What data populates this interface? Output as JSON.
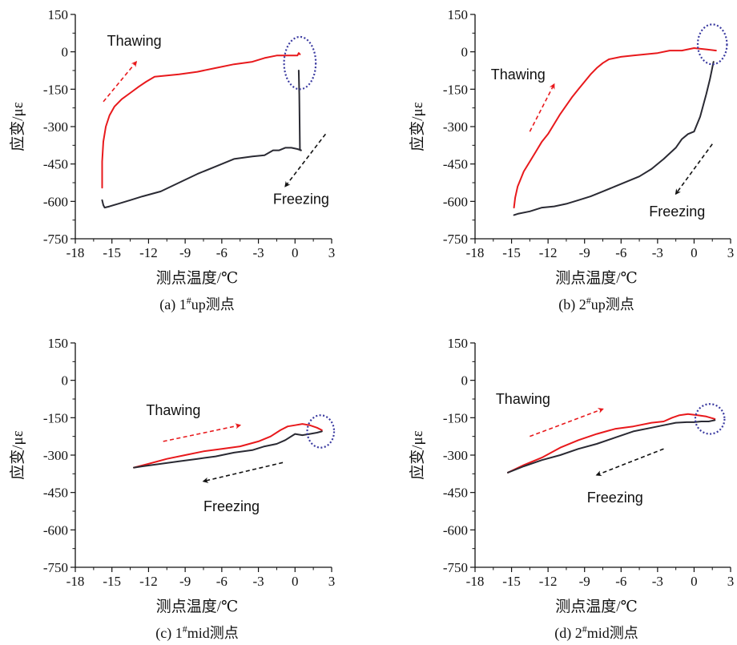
{
  "colors": {
    "thawing": "#e8191c",
    "freezing": "#2a2a33",
    "marker": "#3a3aa0",
    "axis": "#111111"
  },
  "chart_data": [
    {
      "type": "line",
      "caption": "(a) 1#up测点",
      "caption_prefix": "(a) 1",
      "caption_sup": "#",
      "caption_suffix": "up测点",
      "xlabel": "测点温度/℃",
      "ylabel": "应变/με",
      "xlim": [
        -18,
        3
      ],
      "ylim": [
        -750,
        150
      ],
      "xticks": [
        "-18",
        "-15",
        "-12",
        "-9",
        "-6",
        "-3",
        "0",
        "3"
      ],
      "yticks": [
        "150",
        "0",
        "-150",
        "-300",
        "-450",
        "-600",
        "-750"
      ],
      "annotations": {
        "thawing": "Thawing",
        "freezing": "Freezing"
      },
      "series": [
        {
          "name": "Thawing",
          "x": [
            -15.8,
            -15.8,
            -15.7,
            -15.5,
            -15.2,
            -14.8,
            -14.2,
            -13.5,
            -12.8,
            -12.2,
            -11.5,
            -10.5,
            -9.5,
            -8,
            -6.5,
            -5,
            -3.5,
            -2.5,
            -1.5,
            -0.5,
            0.2,
            0.3,
            0.4
          ],
          "y": [
            -545,
            -440,
            -360,
            -300,
            -255,
            -220,
            -190,
            -165,
            -140,
            -120,
            -100,
            -95,
            -90,
            -80,
            -65,
            -50,
            -40,
            -25,
            -15,
            -15,
            -15,
            -5,
            -10
          ]
        },
        {
          "name": "Freezing",
          "x": [
            0.3,
            0.35,
            0.4,
            0.45,
            0.5,
            0.2,
            -0.3,
            -0.8,
            -1.3,
            -1.8,
            -2.5,
            -3.5,
            -5,
            -6.5,
            -8,
            -9.5,
            -11,
            -12.5,
            -13.5,
            -14.5,
            -15.2,
            -15.6,
            -15.7,
            -15.8
          ],
          "y": [
            -75,
            -170,
            -390,
            -395,
            -395,
            -390,
            -385,
            -385,
            -395,
            -395,
            -415,
            -420,
            -430,
            -460,
            -490,
            -525,
            -560,
            -580,
            -595,
            -610,
            -620,
            -625,
            -615,
            -595
          ]
        }
      ],
      "thaw_arrow": [
        [
          -15.7,
          -200
        ],
        [
          -13,
          -40
        ]
      ],
      "freeze_arrow": [
        [
          2.5,
          -330
        ],
        [
          -0.8,
          -540
        ]
      ],
      "ellipse": {
        "cx": 0.4,
        "cy": -45,
        "rx": 1.3,
        "ry": 105
      },
      "thaw_label_at": [
        -15.4,
        25
      ],
      "freeze_label_at": [
        -1.8,
        -610
      ]
    },
    {
      "type": "line",
      "caption": "(b) 2#up测点",
      "caption_prefix": "(b) 2",
      "caption_sup": "#",
      "caption_suffix": "up测点",
      "xlabel": "测点温度/℃",
      "ylabel": "应变/με",
      "xlim": [
        -18,
        3
      ],
      "ylim": [
        -750,
        150
      ],
      "xticks": [
        "-18",
        "-15",
        "-12",
        "-9",
        "-6",
        "-3",
        "0",
        "3"
      ],
      "yticks": [
        "150",
        "0",
        "-150",
        "-300",
        "-450",
        "-600",
        "-750"
      ],
      "annotations": {
        "thawing": "Thawing",
        "freezing": "Freezing"
      },
      "series": [
        {
          "name": "Thawing",
          "x": [
            -14.8,
            -14.7,
            -14.5,
            -14,
            -13.5,
            -13,
            -12.5,
            -12,
            -11.5,
            -11,
            -10.5,
            -10,
            -9.5,
            -9,
            -8.5,
            -8,
            -7.5,
            -7,
            -6,
            -5,
            -4,
            -3,
            -2,
            -1,
            0,
            1,
            1.8
          ],
          "y": [
            -625,
            -585,
            -540,
            -480,
            -440,
            -400,
            -360,
            -330,
            -290,
            -250,
            -215,
            -180,
            -150,
            -120,
            -90,
            -65,
            -45,
            -30,
            -20,
            -15,
            -10,
            -5,
            5,
            5,
            15,
            10,
            5
          ]
        },
        {
          "name": "Freezing",
          "x": [
            1.6,
            1.3,
            1.0,
            0.5,
            0.0,
            -0.5,
            -1.0,
            -1.5,
            -2.5,
            -3.5,
            -4.5,
            -5.5,
            -6.5,
            -7.5,
            -8.5,
            -9.5,
            -10.5,
            -11.5,
            -12.5,
            -13.5,
            -14.5,
            -14.8
          ],
          "y": [
            -40,
            -110,
            -170,
            -260,
            -320,
            -330,
            -350,
            -385,
            -430,
            -470,
            -500,
            -520,
            -540,
            -560,
            -580,
            -595,
            -610,
            -620,
            -625,
            -640,
            -650,
            -655
          ]
        }
      ],
      "thaw_arrow": [
        [
          -13.5,
          -320
        ],
        [
          -11.5,
          -130
        ]
      ],
      "freeze_arrow": [
        [
          1.5,
          -370
        ],
        [
          -1.5,
          -570
        ]
      ],
      "ellipse": {
        "cx": 1.5,
        "cy": 30,
        "rx": 1.2,
        "ry": 80
      },
      "thaw_label_at": [
        -16.7,
        -110
      ],
      "freeze_label_at": [
        -3.7,
        -660
      ]
    },
    {
      "type": "line",
      "caption": "(c) 1#mid测点",
      "caption_prefix": "(c) 1",
      "caption_sup": "#",
      "caption_suffix": "mid测点",
      "xlabel": "测点温度/℃",
      "ylabel": "应变/με",
      "xlim": [
        -18,
        3
      ],
      "ylim": [
        -750,
        150
      ],
      "xticks": [
        "-18",
        "-15",
        "-12",
        "-9",
        "-6",
        "-3",
        "0",
        "3"
      ],
      "yticks": [
        "150",
        "0",
        "-150",
        "-300",
        "-450",
        "-600",
        "-750"
      ],
      "annotations": {
        "thawing": "Thawing",
        "freezing": "Freezing"
      },
      "series": [
        {
          "name": "Thawing",
          "x": [
            -13.2,
            -12,
            -10.5,
            -9,
            -7.5,
            -6,
            -4.5,
            -3,
            -2,
            -1.2,
            -0.6,
            0,
            0.6,
            1.2,
            1.8,
            2.2
          ],
          "y": [
            -350,
            -335,
            -315,
            -300,
            -285,
            -275,
            -265,
            -245,
            -225,
            -200,
            -185,
            -180,
            -175,
            -180,
            -190,
            -200
          ]
        },
        {
          "name": "Freezing",
          "x": [
            2.2,
            1.8,
            1.2,
            0.6,
            0,
            -0.8,
            -1.5,
            -2.5,
            -3.5,
            -5,
            -6.5,
            -8,
            -9.5,
            -11,
            -12.5,
            -13.2
          ],
          "y": [
            -205,
            -210,
            -215,
            -220,
            -215,
            -240,
            -255,
            -265,
            -280,
            -290,
            -305,
            -315,
            -325,
            -335,
            -345,
            -350
          ]
        }
      ],
      "thaw_arrow": [
        [
          -10.8,
          -245
        ],
        [
          -4.5,
          -180
        ]
      ],
      "freeze_arrow": [
        [
          -1,
          -330
        ],
        [
          -7.5,
          -405
        ]
      ],
      "ellipse": {
        "cx": 2.1,
        "cy": -205,
        "rx": 1.1,
        "ry": 65
      },
      "thaw_label_at": [
        -12.2,
        -140
      ],
      "freeze_label_at": [
        -7.5,
        -525
      ]
    },
    {
      "type": "line",
      "caption": "(d) 2#mid测点",
      "caption_prefix": "(d) 2",
      "caption_sup": "#",
      "caption_suffix": "mid测点",
      "xlabel": "测点温度/℃",
      "ylabel": "应变/με",
      "xlim": [
        -18,
        3
      ],
      "ylim": [
        -750,
        150
      ],
      "xticks": [
        "-18",
        "-15",
        "-12",
        "-9",
        "-6",
        "-3",
        "0",
        "3"
      ],
      "yticks": [
        "150",
        "0",
        "-150",
        "-300",
        "-450",
        "-600",
        "-750"
      ],
      "annotations": {
        "thawing": "Thawing",
        "freezing": "Freezing"
      },
      "series": [
        {
          "name": "Thawing",
          "x": [
            -15.3,
            -14,
            -12.5,
            -11,
            -9.5,
            -8,
            -6.5,
            -5,
            -3.5,
            -2.5,
            -1.8,
            -1.2,
            -0.5,
            0.3,
            1,
            1.7
          ],
          "y": [
            -370,
            -340,
            -310,
            -270,
            -240,
            -215,
            -195,
            -185,
            -170,
            -165,
            -150,
            -140,
            -135,
            -140,
            -145,
            -155
          ]
        },
        {
          "name": "Freezing",
          "x": [
            1.7,
            1.2,
            0.6,
            0,
            -0.6,
            -1.5,
            -2.5,
            -3.5,
            -5,
            -6.5,
            -8,
            -9.5,
            -11,
            -12.5,
            -14,
            -15.3
          ],
          "y": [
            -160,
            -165,
            -165,
            -168,
            -168,
            -170,
            -180,
            -190,
            -205,
            -230,
            -255,
            -275,
            -300,
            -320,
            -345,
            -370
          ]
        }
      ],
      "thaw_arrow": [
        [
          -13.5,
          -225
        ],
        [
          -7.5,
          -115
        ]
      ],
      "freeze_arrow": [
        [
          -2.5,
          -275
        ],
        [
          -8,
          -380
        ]
      ],
      "ellipse": {
        "cx": 1.3,
        "cy": -155,
        "rx": 1.2,
        "ry": 60
      },
      "thaw_label_at": [
        -16.3,
        -95
      ],
      "freeze_label_at": [
        -8.8,
        -490
      ]
    }
  ]
}
